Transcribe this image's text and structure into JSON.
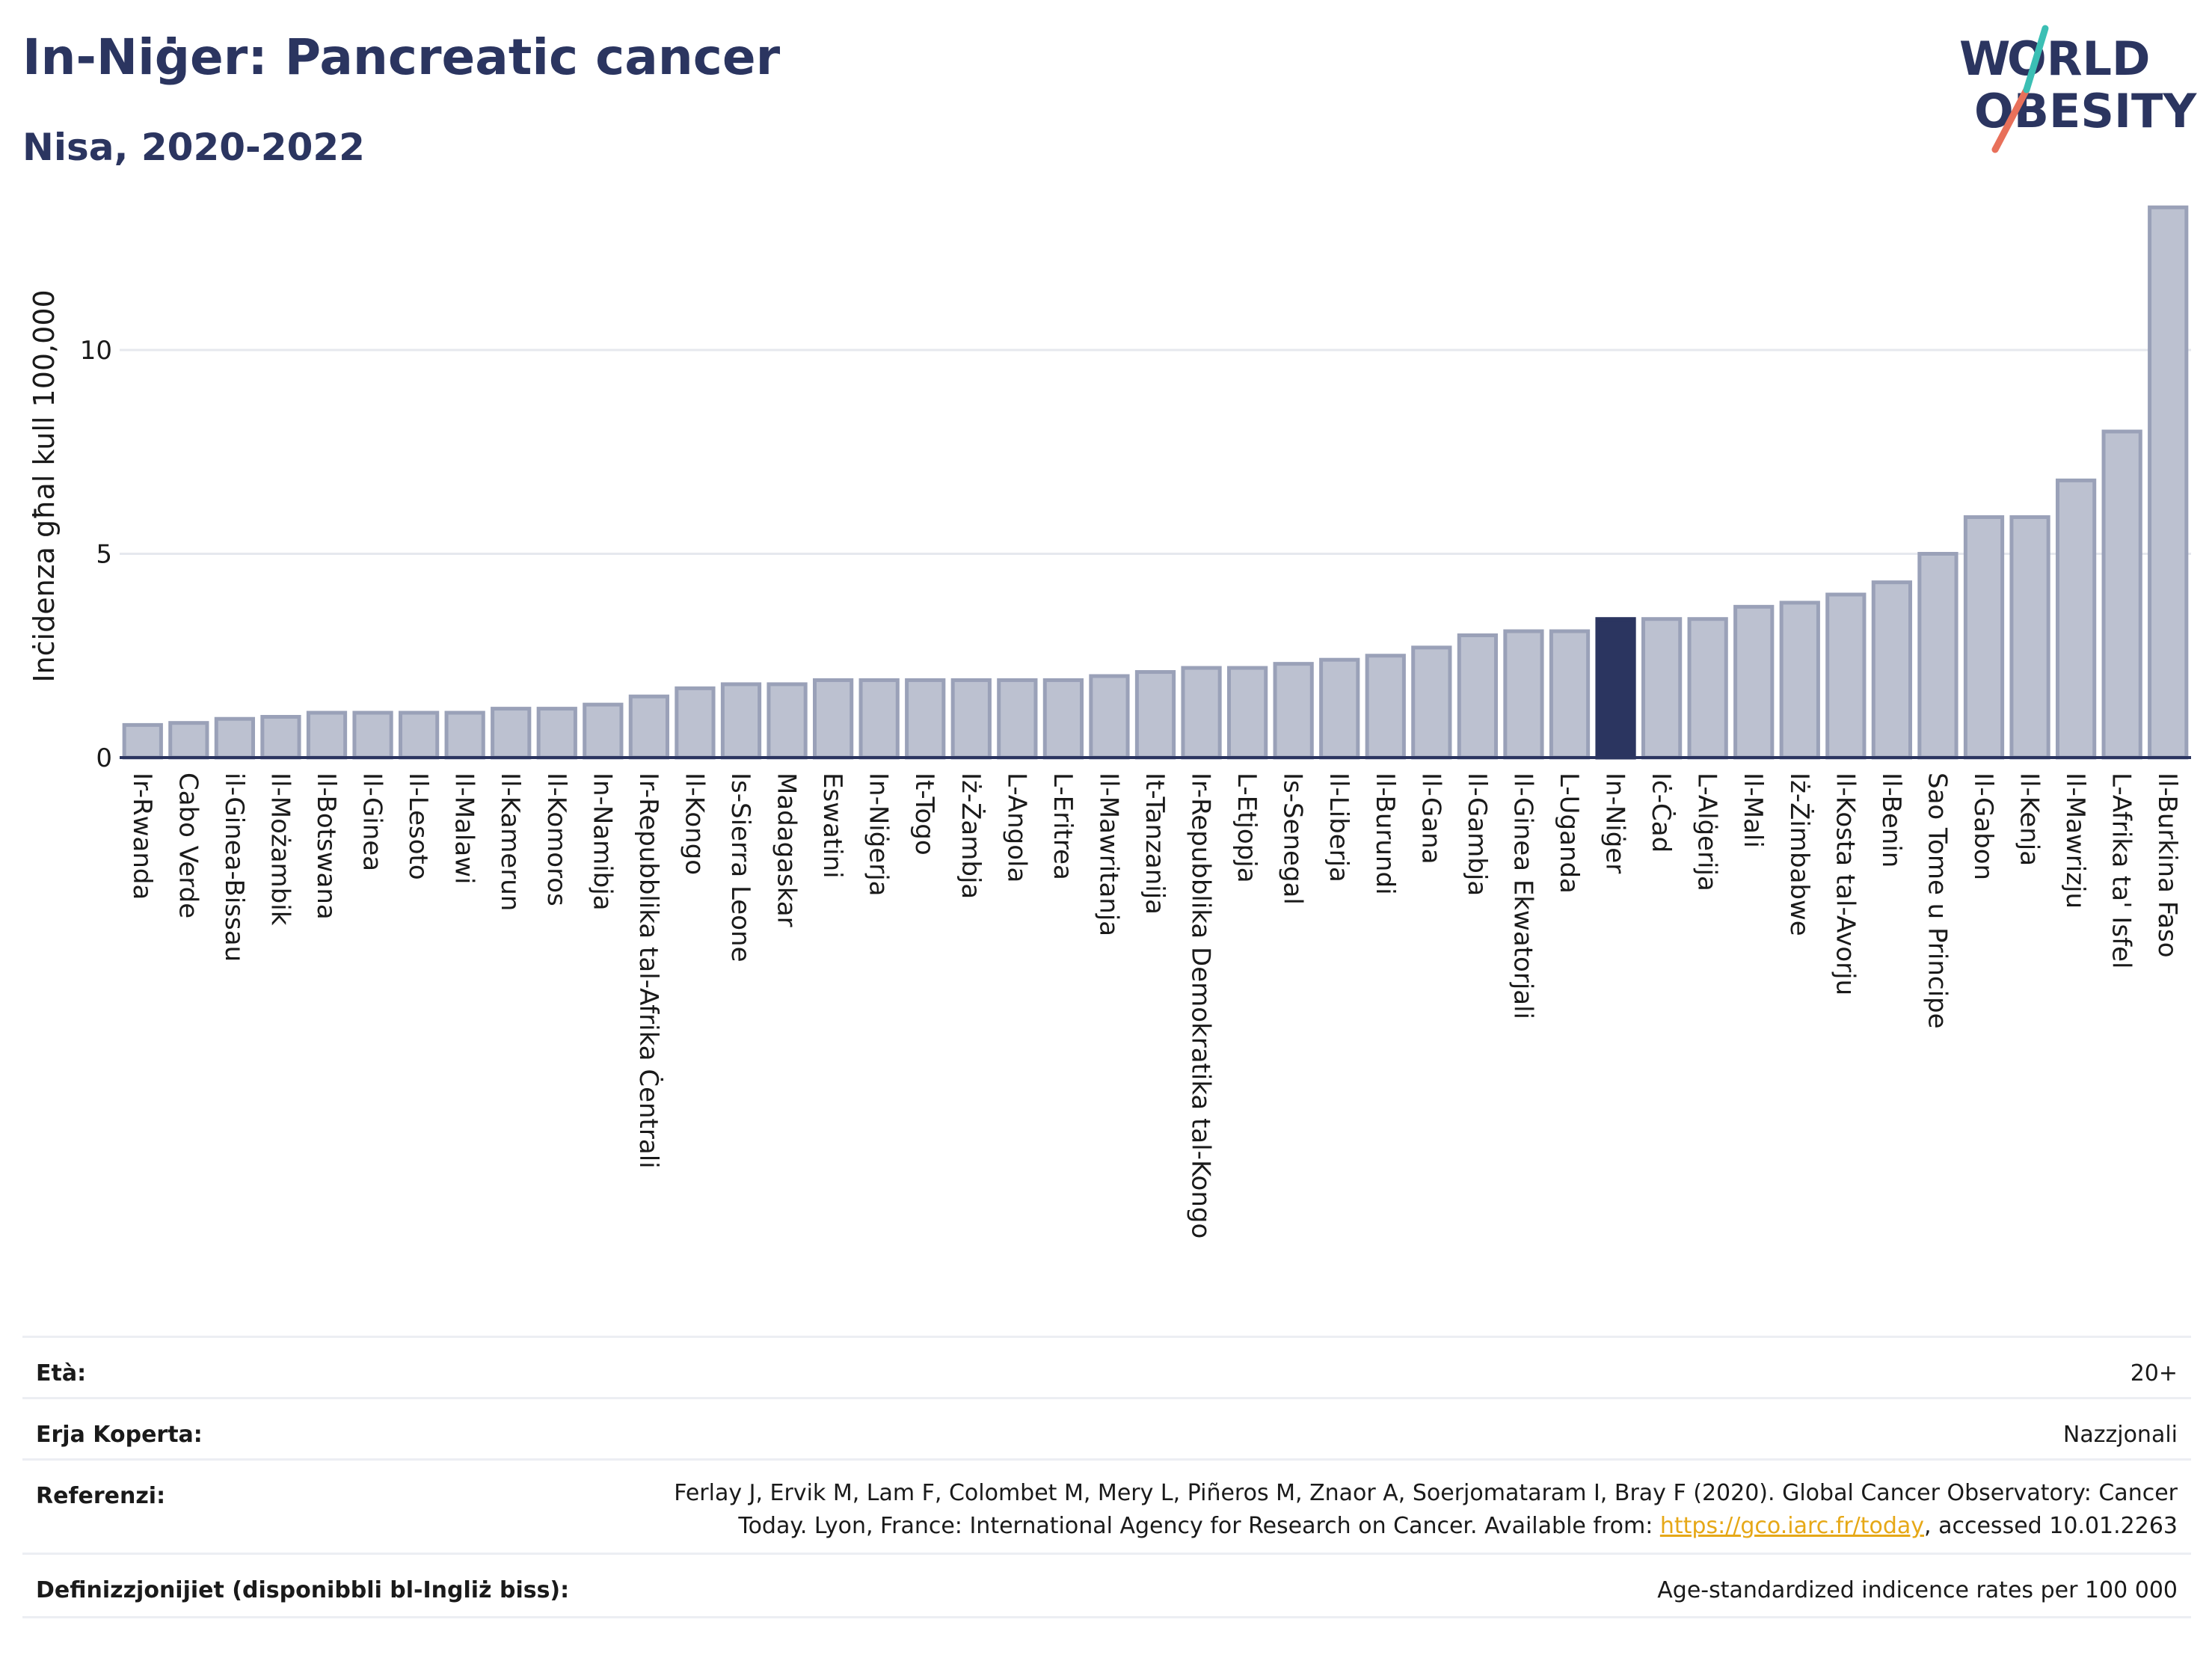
{
  "header": {
    "title": "In-Niġer: Pancreatic cancer",
    "subtitle": "Nisa, 2020-2022"
  },
  "logo": {
    "line1": "WORLD",
    "line2": "OBESITY"
  },
  "colors": {
    "bar": "#bcc1d0",
    "bar_stroke": "#9aa1b8",
    "highlight": "#2b3560",
    "axis": "#2b3560",
    "grid": "#e6e8ee"
  },
  "chart_data": {
    "type": "bar",
    "ylabel": "Inċidenza għal kull 100,000",
    "ylim": [
      0,
      14
    ],
    "yticks": [
      0,
      5,
      10
    ],
    "highlight": "In-Niġer",
    "categories": [
      "Ir-Rwanda",
      "Cabo Verde",
      "il-Ginea-Bissau",
      "Il-Możambik",
      "Il-Botswana",
      "Il-Ginea",
      "Il-Lesoto",
      "Il-Malawi",
      "Il-Kamerun",
      "Il-Komoros",
      "In-Namibja",
      "Ir-Repubblika tal-Afrika Ċentrali",
      "Il-Kongo",
      "Is-Sierra Leone",
      "Madagaskar",
      "Eswatini",
      "In-Niġerja",
      "It-Togo",
      "Iż-Żambja",
      "L-Angola",
      "L-Eritrea",
      "Il-Mawritanja",
      "It-Tanzanija",
      "Ir-Repubblika Demokratika tal-Kongo",
      "L-Etjopja",
      "Is-Senegal",
      "Il-Liberja",
      "Il-Burundi",
      "Il-Gana",
      "Il-Gambja",
      "Il-Ginea Ekwatorjali",
      "L-Uganda",
      "In-Niġer",
      "Iċ-Ċad",
      "L-Alġerija",
      "Il-Mali",
      "Iż-Żimbabwe",
      "Il-Kosta tal-Avorju",
      "Il-Benin",
      "Sao Tome u Principe",
      "Il-Gabon",
      "Il-Kenja",
      "Il-Mawrizju",
      "L-Afrika ta' Isfel",
      "Il-Burkina Faso"
    ],
    "values": [
      0.8,
      0.85,
      0.95,
      1.0,
      1.1,
      1.1,
      1.1,
      1.1,
      1.2,
      1.2,
      1.3,
      1.5,
      1.7,
      1.8,
      1.8,
      1.9,
      1.9,
      1.9,
      1.9,
      1.9,
      1.9,
      2.0,
      2.1,
      2.2,
      2.2,
      2.3,
      2.4,
      2.5,
      2.7,
      3.0,
      3.1,
      3.1,
      3.4,
      3.4,
      3.4,
      3.7,
      3.8,
      4.0,
      4.3,
      5.0,
      5.9,
      5.9,
      6.8,
      8.0,
      13.5
    ]
  },
  "meta": {
    "age_label": "Età:",
    "age_value": "20+",
    "area_label": "Erja Koperta:",
    "area_value": "Nazzjonali",
    "ref_label": "Referenzi:",
    "ref_text_1": "Ferlay J, Ervik M, Lam F, Colombet M, Mery L, Piñeros M, Znaor A, Soerjomataram I, Bray F (2020). Global Cancer Observatory: Cancer",
    "ref_text_2": "Today. Lyon, France: International Agency for Research on Cancer. Available from: ",
    "ref_link": "https://gco.iarc.fr/today",
    "ref_text_3": ", accessed 10.01.2263",
    "def_label": "Definizzjonijiet (disponibbli bl-Ingliż biss):",
    "def_value": "Age-standardized indicence rates per 100 000"
  }
}
